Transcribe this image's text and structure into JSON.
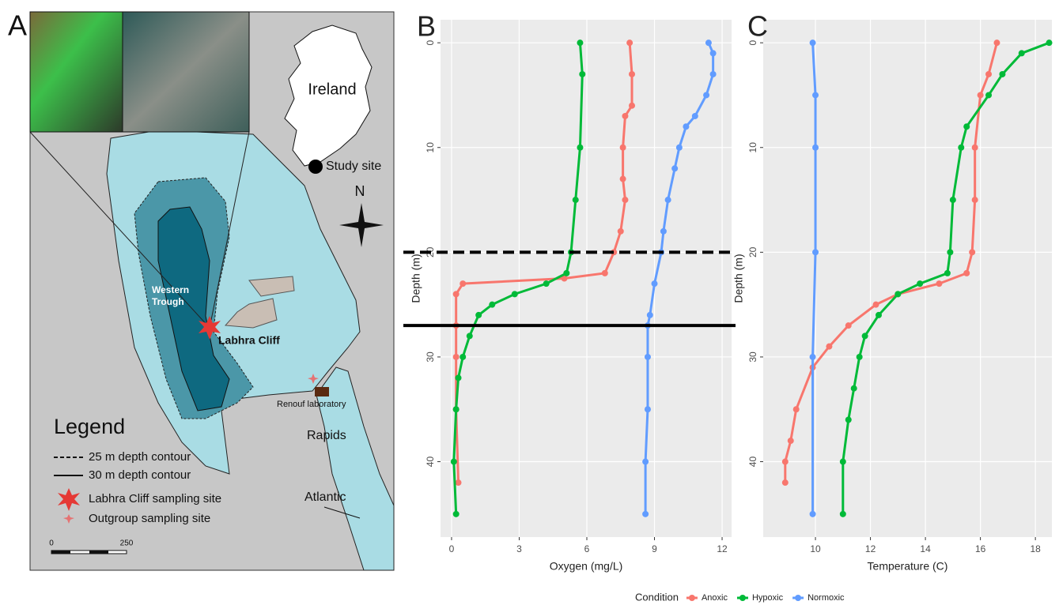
{
  "map": {
    "panel": "A",
    "ireland": "Ireland",
    "study_site": "Study site",
    "north": "N",
    "trough": [
      "Western",
      "Trough"
    ],
    "cliff": "Labhra Cliff",
    "lab": "Renouf laboratory",
    "rapids": "Rapids",
    "atlantic": "Atlantic",
    "legend": {
      "title": "Legend",
      "items": [
        "25 m depth contour",
        "30 m depth contour",
        "Labhra Cliff sampling site",
        "Outgroup sampling site"
      ]
    },
    "scale": [
      "0",
      "250"
    ]
  },
  "legend": {
    "title": "Condition"
  },
  "chart_data": [
    {
      "type": "line",
      "panel": "B",
      "xlabel": "Oxygen (mg/L)",
      "ylabel": "Depth (m)",
      "xlim": [
        -0.49,
        12.42
      ],
      "xticks": [
        0,
        3,
        6,
        9,
        12
      ],
      "ylim": [
        47.2,
        -2.2
      ],
      "yticks": [
        0,
        10,
        20,
        30,
        40
      ],
      "grid": true,
      "hlines": [
        {
          "value": 20,
          "style": "dashed"
        },
        {
          "value": 27,
          "style": "solid"
        }
      ],
      "series": [
        {
          "name": "Anoxic",
          "color": "#F8766D",
          "y": [
            0,
            3,
            6,
            7,
            10,
            13,
            15,
            18,
            20,
            22,
            22.5,
            23,
            24,
            27,
            30,
            35,
            42
          ],
          "x": [
            7.9,
            8.0,
            8.0,
            7.7,
            7.6,
            7.6,
            7.7,
            7.5,
            7.2,
            6.8,
            5.0,
            0.5,
            0.2,
            0.2,
            0.2,
            0.2,
            0.3
          ]
        },
        {
          "name": "Hypoxic",
          "color": "#00BA38",
          "y": [
            0,
            3,
            10,
            15,
            20,
            22,
            23,
            24,
            25,
            26,
            28,
            30,
            32,
            35,
            40,
            45
          ],
          "x": [
            5.7,
            5.8,
            5.7,
            5.5,
            5.3,
            5.1,
            4.2,
            2.8,
            1.8,
            1.2,
            0.8,
            0.5,
            0.3,
            0.2,
            0.1,
            0.2
          ]
        },
        {
          "name": "Normoxic",
          "color": "#619CFF",
          "y": [
            0,
            1,
            3,
            5,
            7,
            8,
            10,
            12,
            15,
            18,
            20,
            23,
            26,
            27,
            30,
            35,
            40,
            45
          ],
          "x": [
            11.4,
            11.6,
            11.6,
            11.3,
            10.8,
            10.4,
            10.1,
            9.9,
            9.6,
            9.4,
            9.3,
            9.0,
            8.8,
            8.7,
            8.7,
            8.7,
            8.6,
            8.6
          ]
        }
      ]
    },
    {
      "type": "line",
      "panel": "C",
      "xlabel": "Temperature (C)",
      "ylabel": "Depth (m)",
      "xlim": [
        8.1,
        18.6
      ],
      "xticks": [
        10,
        12,
        14,
        16,
        18
      ],
      "ylim": [
        47.2,
        -2.2
      ],
      "yticks": [
        0,
        10,
        20,
        30,
        40
      ],
      "grid": true,
      "series": [
        {
          "name": "Anoxic",
          "color": "#F8766D",
          "y": [
            0,
            3,
            5,
            10,
            15,
            20,
            22,
            23,
            24,
            25,
            27,
            29,
            31,
            35,
            38,
            40,
            42
          ],
          "x": [
            16.6,
            16.3,
            16.0,
            15.8,
            15.8,
            15.7,
            15.5,
            14.5,
            13.0,
            12.2,
            11.2,
            10.5,
            9.9,
            9.3,
            9.1,
            8.9,
            8.9
          ]
        },
        {
          "name": "Hypoxic",
          "color": "#00BA38",
          "y": [
            0,
            1,
            3,
            5,
            8,
            10,
            15,
            20,
            22,
            23,
            24,
            26,
            28,
            30,
            33,
            36,
            40,
            45
          ],
          "x": [
            18.5,
            17.5,
            16.8,
            16.3,
            15.5,
            15.3,
            15.0,
            14.9,
            14.8,
            13.8,
            13.0,
            12.3,
            11.8,
            11.6,
            11.4,
            11.2,
            11.0,
            11.0
          ]
        },
        {
          "name": "Normoxic",
          "color": "#619CFF",
          "y": [
            0,
            5,
            10,
            20,
            30,
            45
          ],
          "x": [
            9.9,
            10.0,
            10.0,
            10.0,
            9.9,
            9.9
          ]
        }
      ]
    }
  ]
}
